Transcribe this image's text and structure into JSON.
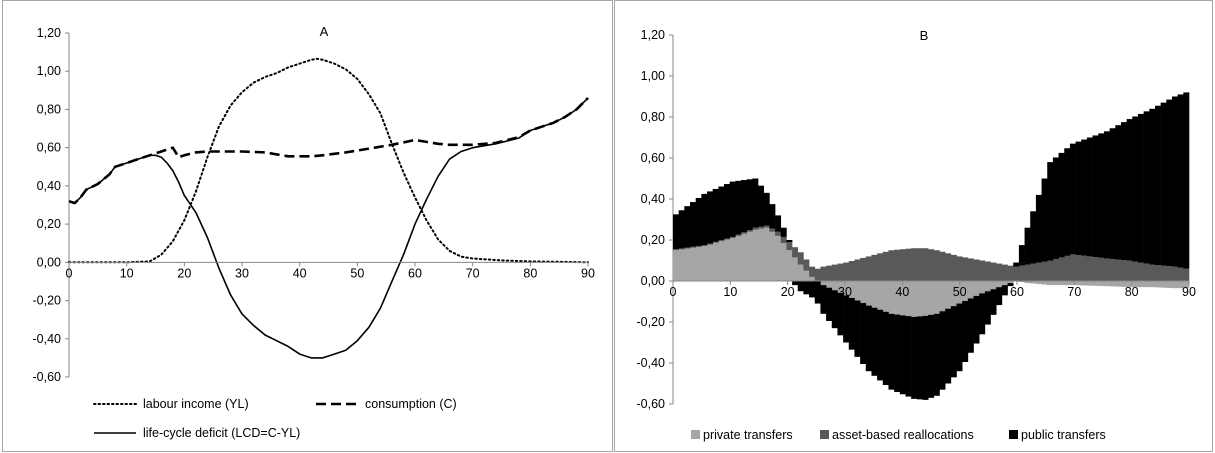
{
  "chart_data": [
    {
      "type": "line",
      "title": "A",
      "xlabel": "",
      "ylabel": "",
      "xlim": [
        0,
        90
      ],
      "ylim": [
        -0.6,
        1.2
      ],
      "x_ticks": [
        "0",
        "10",
        "20",
        "30",
        "40",
        "50",
        "60",
        "70",
        "80",
        "90"
      ],
      "y_ticks": [
        "-0,60",
        "-0,40",
        "-0,20",
        "0,00",
        "0,20",
        "0,40",
        "0,60",
        "0,80",
        "1,00",
        "1,20"
      ],
      "grid": false,
      "legend": "bottom",
      "series": [
        {
          "name": "labour income (YL)",
          "style": "dotted",
          "x": [
            0,
            5,
            10,
            14,
            16,
            18,
            20,
            22,
            24,
            26,
            28,
            30,
            32,
            34,
            36,
            38,
            40,
            42,
            43,
            44,
            46,
            48,
            50,
            52,
            54,
            56,
            58,
            60,
            62,
            64,
            66,
            68,
            70,
            75,
            80,
            85,
            90
          ],
          "values": [
            0,
            0,
            0,
            0.005,
            0.04,
            0.11,
            0.22,
            0.37,
            0.55,
            0.71,
            0.82,
            0.89,
            0.94,
            0.97,
            0.99,
            1.02,
            1.04,
            1.06,
            1.065,
            1.06,
            1.04,
            1.01,
            0.96,
            0.88,
            0.78,
            0.62,
            0.47,
            0.34,
            0.22,
            0.12,
            0.06,
            0.03,
            0.02,
            0.01,
            0.005,
            0.003,
            0
          ]
        },
        {
          "name": "consumption (C)",
          "style": "dashed",
          "x": [
            0,
            1,
            2,
            3,
            5,
            7,
            8,
            10,
            12,
            14,
            15,
            16,
            18,
            19,
            20,
            22,
            24,
            26,
            30,
            34,
            38,
            40,
            42,
            44,
            48,
            52,
            56,
            60,
            62,
            64,
            66,
            70,
            74,
            78,
            80,
            84,
            86,
            88,
            90
          ],
          "values": [
            0.32,
            0.31,
            0.34,
            0.38,
            0.41,
            0.46,
            0.5,
            0.52,
            0.54,
            0.56,
            0.57,
            0.58,
            0.6,
            0.55,
            0.56,
            0.575,
            0.58,
            0.58,
            0.58,
            0.575,
            0.555,
            0.555,
            0.555,
            0.56,
            0.575,
            0.595,
            0.615,
            0.64,
            0.63,
            0.62,
            0.615,
            0.615,
            0.625,
            0.655,
            0.69,
            0.73,
            0.76,
            0.8,
            0.86
          ]
        },
        {
          "name": "life-cycle deficit (LCD=C-YL)",
          "style": "solid",
          "x": [
            0,
            1,
            2,
            3,
            5,
            7,
            8,
            10,
            12,
            14,
            15,
            16,
            17,
            18,
            19,
            20,
            22,
            24,
            26,
            28,
            30,
            32,
            34,
            36,
            38,
            40,
            42,
            43,
            44,
            46,
            48,
            50,
            52,
            54,
            56,
            58,
            60,
            62,
            64,
            66,
            68,
            70,
            74,
            78,
            80,
            84,
            86,
            88,
            90
          ],
          "values": [
            0.32,
            0.31,
            0.34,
            0.38,
            0.41,
            0.46,
            0.5,
            0.52,
            0.54,
            0.56,
            0.56,
            0.55,
            0.52,
            0.48,
            0.42,
            0.35,
            0.26,
            0.13,
            -0.03,
            -0.17,
            -0.27,
            -0.33,
            -0.38,
            -0.41,
            -0.44,
            -0.48,
            -0.5,
            -0.5,
            -0.5,
            -0.48,
            -0.46,
            -0.41,
            -0.34,
            -0.24,
            -0.1,
            0.04,
            0.2,
            0.33,
            0.45,
            0.54,
            0.58,
            0.6,
            0.62,
            0.65,
            0.69,
            0.73,
            0.76,
            0.8,
            0.86
          ]
        }
      ]
    },
    {
      "type": "area",
      "stacked": true,
      "title": "B",
      "xlabel": "",
      "ylabel": "",
      "xlim": [
        0,
        90
      ],
      "ylim": [
        -0.6,
        1.2
      ],
      "x_ticks": [
        "0",
        "10",
        "20",
        "30",
        "40",
        "50",
        "60",
        "70",
        "80",
        "90"
      ],
      "y_ticks": [
        "-0,60",
        "-0,40",
        "-0,20",
        "0,00",
        "0,20",
        "0,40",
        "0,60",
        "0,80",
        "1,00",
        "1,20"
      ],
      "grid": false,
      "legend": "bottom",
      "series": [
        {
          "name": "private transfers",
          "color": "#a6a6a6",
          "x": [
            0,
            5,
            10,
            14,
            16,
            18,
            20,
            22,
            24,
            26,
            30,
            34,
            38,
            42,
            44,
            46,
            50,
            54,
            58,
            60,
            62,
            66,
            70,
            76,
            80,
            84,
            88,
            90
          ],
          "values": [
            0.15,
            0.17,
            0.21,
            0.25,
            0.26,
            0.22,
            0.15,
            0.08,
            0.02,
            -0.02,
            -0.07,
            -0.12,
            -0.16,
            -0.175,
            -0.17,
            -0.16,
            -0.11,
            -0.06,
            -0.02,
            0,
            -0.01,
            -0.02,
            -0.02,
            -0.025,
            -0.03,
            -0.03,
            -0.035,
            -0.035
          ]
        },
        {
          "name": "asset-based reallocations",
          "color": "#595959",
          "x": [
            0,
            5,
            10,
            14,
            16,
            18,
            20,
            22,
            24,
            26,
            30,
            34,
            38,
            42,
            44,
            46,
            50,
            54,
            58,
            60,
            62,
            66,
            70,
            76,
            80,
            84,
            88,
            90
          ],
          "values": [
            0.005,
            0.005,
            0.005,
            0.01,
            0.01,
            0.02,
            0.04,
            0.06,
            0.05,
            0.07,
            0.09,
            0.12,
            0.15,
            0.16,
            0.16,
            0.15,
            0.12,
            0.1,
            0.08,
            0.07,
            0.08,
            0.1,
            0.13,
            0.11,
            0.1,
            0.08,
            0.07,
            0.06
          ]
        },
        {
          "name": "public transfers",
          "color": "#000000",
          "x": [
            0,
            5,
            10,
            14,
            16,
            18,
            20,
            22,
            24,
            26,
            30,
            34,
            38,
            42,
            44,
            46,
            50,
            54,
            58,
            60,
            62,
            66,
            70,
            76,
            80,
            84,
            88,
            90
          ],
          "values": [
            0.17,
            0.25,
            0.27,
            0.24,
            0.16,
            0.08,
            0.01,
            -0.05,
            -0.08,
            -0.14,
            -0.23,
            -0.32,
            -0.37,
            -0.4,
            -0.41,
            -0.4,
            -0.33,
            -0.2,
            -0.05,
            0.02,
            0.18,
            0.48,
            0.54,
            0.62,
            0.69,
            0.76,
            0.83,
            0.86
          ]
        }
      ]
    }
  ]
}
